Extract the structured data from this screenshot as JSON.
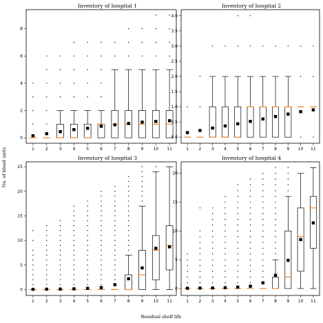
{
  "figure": {
    "xlabel": "Residual shelf life",
    "ylabel": "No. of blood units"
  },
  "chart_data": [
    {
      "type": "box",
      "title": "Inventory of hospital 1",
      "categories": [
        "1",
        "2",
        "3",
        "4",
        "5",
        "6",
        "7",
        "8",
        "9",
        "10",
        "11"
      ],
      "ylim": [
        -0.4,
        9.4
      ],
      "yticks": [
        0,
        2,
        4,
        6,
        8
      ],
      "series": [
        {
          "q1": [
            0,
            0,
            0,
            0,
            0,
            0,
            0,
            0,
            0,
            0,
            0
          ],
          "median": [
            0,
            0,
            0,
            0,
            0,
            1,
            1,
            1,
            1,
            1,
            1
          ],
          "q3": [
            0,
            0,
            1,
            1,
            1,
            1,
            2,
            2,
            2,
            2,
            2
          ],
          "whisker_low": [
            0,
            0,
            0,
            0,
            0,
            0,
            0,
            0,
            0,
            0,
            0
          ],
          "whisker_high": [
            0,
            0,
            2,
            2,
            2,
            2,
            5,
            5,
            5,
            5,
            5
          ],
          "mean": [
            0.15,
            0.3,
            0.45,
            0.6,
            0.7,
            0.85,
            0.95,
            1.05,
            1.15,
            1.2,
            1.25
          ],
          "outliers": [
            [
              1,
              2,
              3,
              4
            ],
            [
              1,
              2,
              3,
              4,
              5,
              6
            ],
            [
              3,
              4,
              5,
              6
            ],
            [
              3,
              4,
              5,
              6,
              7
            ],
            [
              3,
              4,
              5,
              6,
              7
            ],
            [
              3,
              4,
              5,
              6,
              7
            ],
            [
              6,
              7
            ],
            [
              6,
              7,
              8
            ],
            [
              6,
              7,
              8
            ],
            [
              6,
              7,
              8,
              9
            ],
            [
              6,
              7,
              8,
              9
            ]
          ]
        }
      ]
    },
    {
      "type": "box",
      "title": "Inventory of hospital 2",
      "categories": [
        "1",
        "2",
        "3",
        "4",
        "5",
        "6",
        "7",
        "8",
        "9",
        "10",
        "11"
      ],
      "ylim": [
        -0.2,
        4.2
      ],
      "yticks": [
        0.0,
        0.5,
        1.0,
        1.5,
        2.0,
        2.5,
        3.0,
        3.5,
        4.0
      ],
      "series": [
        {
          "q1": [
            0,
            0,
            0,
            0,
            0,
            0,
            0,
            0,
            0,
            1,
            1
          ],
          "median": [
            0,
            0,
            0,
            0,
            0,
            1,
            1,
            1,
            1,
            1,
            1
          ],
          "q3": [
            0,
            0,
            1,
            1,
            1,
            1,
            1,
            1,
            1,
            1,
            1
          ],
          "whisker_low": [
            0,
            0,
            0,
            0,
            0,
            0,
            0,
            0,
            0,
            1,
            1
          ],
          "whisker_high": [
            0,
            0,
            2,
            2,
            2,
            2,
            2,
            2,
            2,
            1,
            1
          ],
          "mean": [
            0.15,
            0.22,
            0.3,
            0.37,
            0.44,
            0.52,
            0.6,
            0.68,
            0.76,
            0.84,
            0.9
          ],
          "outliers": [
            [
              1
            ],
            [
              1,
              2
            ],
            [
              3
            ],
            [
              3
            ],
            [
              3,
              4
            ],
            [
              3,
              4
            ],
            [
              3
            ],
            [
              3
            ],
            [
              3
            ],
            [
              0,
              2,
              3
            ],
            [
              0,
              2,
              3
            ]
          ]
        }
      ]
    },
    {
      "type": "box",
      "title": "Inventory of hospital 3",
      "categories": [
        "1",
        "2",
        "3",
        "4",
        "5",
        "6",
        "7",
        "8",
        "9",
        "10",
        "11"
      ],
      "ylim": [
        -1.2,
        26
      ],
      "yticks": [
        0,
        5,
        10,
        15,
        20,
        25
      ],
      "series": [
        {
          "q1": [
            0,
            0,
            0,
            0,
            0,
            0,
            0,
            0,
            0,
            2,
            4
          ],
          "median": [
            0,
            0,
            0,
            0,
            0,
            0,
            0,
            0,
            3,
            8,
            9
          ],
          "q3": [
            0,
            0,
            0,
            0,
            0,
            0,
            0,
            3,
            8,
            11,
            13
          ],
          "whisker_low": [
            0,
            0,
            0,
            0,
            0,
            0,
            0,
            0,
            0,
            0,
            0
          ],
          "whisker_high": [
            0,
            0,
            0,
            0,
            0,
            0,
            0,
            7,
            17,
            24,
            25
          ],
          "mean": [
            0.05,
            0.08,
            0.1,
            0.15,
            0.25,
            0.4,
            1.0,
            2.2,
            4.4,
            8.4,
            8.7
          ],
          "outliers": [
            [
              1,
              2,
              3,
              4,
              5,
              6,
              7,
              8,
              10,
              12
            ],
            [
              1,
              2,
              3,
              4,
              5,
              6,
              7,
              8,
              9,
              10,
              11,
              12,
              13
            ],
            [
              1,
              2,
              3,
              4,
              5,
              6,
              7,
              8,
              9,
              10,
              11,
              12,
              13,
              14
            ],
            [
              1,
              2,
              3,
              4,
              5,
              6,
              7,
              8,
              9,
              10,
              11,
              12,
              13,
              14,
              15,
              16,
              17
            ],
            [
              1,
              2,
              3,
              4,
              5,
              6,
              7,
              8,
              9,
              10,
              11,
              12,
              13,
              14,
              15,
              16,
              17,
              18
            ],
            [
              1,
              2,
              3,
              4,
              5,
              6,
              7,
              8,
              9,
              10,
              11,
              12,
              13,
              14,
              15,
              16,
              17,
              18,
              19,
              20
            ],
            [
              1,
              2,
              3,
              4,
              5,
              6,
              7,
              8,
              9,
              10,
              11,
              12,
              13,
              14,
              15,
              16,
              17,
              18,
              19,
              20,
              21
            ],
            [
              8,
              9,
              10,
              11,
              12,
              13,
              14,
              15,
              16,
              17,
              18,
              19,
              20,
              21,
              22,
              23
            ],
            [
              18,
              19,
              20,
              21,
              22,
              23,
              24,
              25
            ],
            [
              25
            ],
            []
          ]
        }
      ]
    },
    {
      "type": "box",
      "title": "Inventory of hospital 4",
      "categories": [
        "1",
        "2",
        "3",
        "4",
        "5",
        "6",
        "7",
        "8",
        "9",
        "10",
        "11"
      ],
      "ylim": [
        -1.2,
        22
      ],
      "yticks": [
        0,
        5,
        10,
        15,
        20
      ],
      "series": [
        {
          "q1": [
            0,
            0,
            0,
            0,
            0,
            0,
            0,
            0,
            0,
            3,
            7
          ],
          "median": [
            0,
            0,
            0,
            0,
            0,
            0,
            0,
            0,
            2,
            9,
            14
          ],
          "q3": [
            0,
            0,
            0,
            0,
            0,
            0,
            0,
            2,
            10,
            14,
            16
          ],
          "whisker_low": [
            0,
            0,
            0,
            0,
            0,
            0,
            0,
            0,
            0,
            0,
            0
          ],
          "whisker_high": [
            0,
            0,
            0,
            0,
            0,
            0,
            0,
            5,
            16,
            20,
            21
          ],
          "mean": [
            0.05,
            0.08,
            0.1,
            0.15,
            0.25,
            0.4,
            1.0,
            2.3,
            4.9,
            8.5,
            11.4
          ],
          "outliers": [
            [
              1,
              2,
              3,
              4,
              5,
              6
            ],
            [
              1,
              2,
              3,
              4,
              5,
              6,
              7,
              8,
              9,
              10,
              14
            ],
            [
              1,
              2,
              3,
              4,
              5,
              6,
              7,
              8,
              9,
              10,
              11,
              12,
              13,
              14
            ],
            [
              1,
              2,
              3,
              4,
              5,
              6,
              7,
              8,
              9,
              10,
              11,
              12,
              13,
              14,
              15,
              16
            ],
            [
              1,
              2,
              3,
              4,
              5,
              6,
              7,
              8,
              9,
              10,
              11,
              12,
              13,
              14,
              15,
              16,
              17,
              18
            ],
            [
              1,
              2,
              3,
              4,
              5,
              6,
              7,
              8,
              9,
              10,
              11,
              12,
              13,
              14,
              15,
              16,
              17,
              18,
              19
            ],
            [
              1,
              2,
              3,
              4,
              5,
              6,
              7,
              8,
              9,
              10,
              11,
              12,
              13,
              14,
              15,
              16,
              17,
              18,
              19,
              20
            ],
            [
              6,
              7,
              8,
              9,
              10,
              11,
              12,
              13,
              14,
              15,
              16,
              17,
              18,
              19,
              20,
              21
            ],
            [
              17,
              18,
              19,
              20,
              21
            ],
            [],
            []
          ]
        }
      ]
    }
  ]
}
